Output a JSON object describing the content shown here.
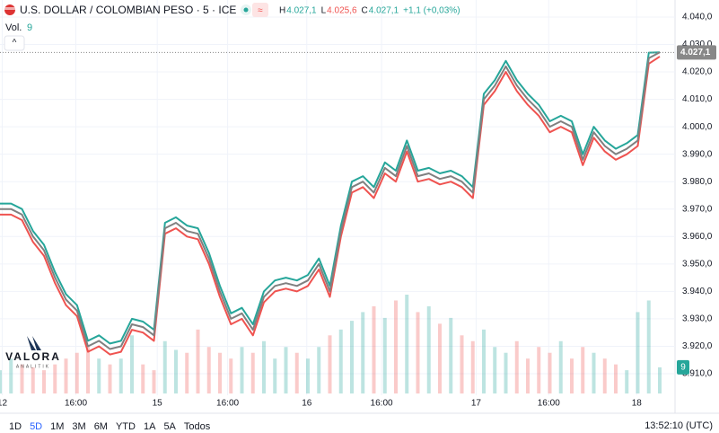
{
  "header": {
    "title": "U.S. DOLLAR / COLOMBIAN PESO · 5 · ICE",
    "ohlc": [
      {
        "key": "H",
        "text": "4.027,1"
      },
      {
        "key": "L",
        "text": "4.025,6"
      },
      {
        "key": "C",
        "text": "4.027,1"
      }
    ],
    "change": "+1,1 (+0,03%)",
    "volume_title": "Vol.",
    "volume_text": "9"
  },
  "logo": {
    "name": "VALORA",
    "tagline": "ANALITIK"
  },
  "toolbar": {
    "ranges": [
      "1D",
      "5D",
      "1M",
      "3M",
      "6M",
      "YTD",
      "1A",
      "5A",
      "Todos"
    ],
    "clock": "13:52:10 (UTC)"
  },
  "chart_data": {
    "type": "line",
    "x": [
      0,
      1,
      2,
      3,
      4,
      5,
      6,
      7,
      8,
      9,
      10,
      11,
      12,
      13,
      14,
      15,
      16,
      17,
      18,
      19,
      20,
      21,
      22,
      23,
      24,
      25,
      26,
      27,
      28,
      29,
      30,
      31,
      32,
      33,
      34,
      35,
      36,
      37,
      38,
      39,
      40,
      41,
      42,
      43,
      44,
      45,
      46,
      47,
      48,
      49,
      50,
      51,
      52,
      53,
      54,
      55,
      56,
      57,
      58,
      59,
      60
    ],
    "series": [
      {
        "color": "#26a69a",
        "values": [
          3972,
          3972,
          3970,
          3962,
          3957,
          3947,
          3939,
          3935,
          3922,
          3924,
          3921,
          3922,
          3930,
          3929,
          3926,
          3965,
          3967,
          3964,
          3963,
          3954,
          3942,
          3932,
          3934,
          3928,
          3940,
          3944,
          3945,
          3944,
          3946,
          3952,
          3942,
          3964,
          3980,
          3982,
          3978,
          3987,
          3984,
          3995,
          3984,
          3985,
          3983,
          3984,
          3982,
          3978,
          4012,
          4017,
          4024,
          4017,
          4012,
          4008,
          4002,
          4004,
          4002,
          3990,
          4000,
          3995,
          3992,
          3994,
          3997,
          4027,
          4027.1
        ]
      },
      {
        "color": "#ef5350",
        "values": [
          3968,
          3968,
          3966,
          3958,
          3953,
          3943,
          3935,
          3931,
          3918,
          3920,
          3917,
          3918,
          3926,
          3925,
          3922,
          3961,
          3963,
          3960,
          3959,
          3950,
          3938,
          3928,
          3930,
          3924,
          3936,
          3940,
          3941,
          3940,
          3942,
          3948,
          3938,
          3960,
          3976,
          3978,
          3974,
          3983,
          3980,
          3991,
          3980,
          3981,
          3979,
          3980,
          3978,
          3974,
          4008,
          4013,
          4020,
          4013,
          4008,
          4004,
          3998,
          4000,
          3998,
          3986,
          3996,
          3991,
          3988,
          3990,
          3993,
          4023,
          4025.6
        ]
      },
      {
        "color": "#808080",
        "values": [
          3970,
          3970,
          3968,
          3960,
          3955,
          3945,
          3937,
          3933,
          3920,
          3922,
          3919,
          3920,
          3928,
          3927,
          3924,
          3963,
          3965,
          3962,
          3961,
          3952,
          3940,
          3930,
          3932,
          3926,
          3938,
          3942,
          3943,
          3942,
          3944,
          3950,
          3940,
          3962,
          3978,
          3980,
          3976,
          3985,
          3982,
          3993,
          3982,
          3983,
          3981,
          3982,
          3980,
          3976,
          4010,
          4015,
          4022,
          4015,
          4010,
          4006,
          4000,
          4002,
          4000,
          3988,
          3998,
          3993,
          3990,
          3992,
          3995,
          4025,
          4027.1
        ]
      }
    ],
    "volume": [
      8,
      12,
      10,
      9,
      8,
      10,
      12,
      14,
      16,
      12,
      10,
      12,
      20,
      10,
      8,
      18,
      15,
      14,
      22,
      16,
      14,
      12,
      16,
      14,
      18,
      12,
      16,
      14,
      12,
      16,
      20,
      22,
      25,
      28,
      30,
      26,
      32,
      34,
      28,
      30,
      24,
      26,
      20,
      18,
      22,
      16,
      14,
      18,
      12,
      16,
      14,
      18,
      12,
      16,
      14,
      12,
      10,
      8,
      28,
      32,
      9
    ],
    "last_price": {
      "value": 4027.1,
      "label": "4.027,1"
    },
    "ylim": [
      3895.6,
      4046.2
    ],
    "yticks": [
      {
        "value": 4040,
        "label": "4.040,0"
      },
      {
        "value": 4030,
        "label": "4.030,0"
      },
      {
        "value": 4020,
        "label": "4.020,0"
      },
      {
        "value": 4010,
        "label": "4.010,0"
      },
      {
        "value": 4000,
        "label": "4.000,0"
      },
      {
        "value": 3990,
        "label": "3.990,0"
      },
      {
        "value": 3980,
        "label": "3.980,0"
      },
      {
        "value": 3970,
        "label": "3.970,0"
      },
      {
        "value": 3960,
        "label": "3.960,0"
      },
      {
        "value": 3950,
        "label": "3.950,0"
      },
      {
        "value": 3940,
        "label": "3.940,0"
      },
      {
        "value": 3930,
        "label": "3.930,0"
      },
      {
        "value": 3920,
        "label": "3.920,0"
      },
      {
        "value": 3910,
        "label": "3.910,0"
      }
    ],
    "xlim": [
      0,
      60
    ],
    "xticks": [
      {
        "value": 0.2,
        "label": "12"
      },
      {
        "value": 6.9,
        "label": "16:00"
      },
      {
        "value": 14.3,
        "label": "15"
      },
      {
        "value": 20.7,
        "label": "16:00"
      },
      {
        "value": 27.9,
        "label": "16"
      },
      {
        "value": 34.7,
        "label": "16:00"
      },
      {
        "value": 43.3,
        "label": "17"
      },
      {
        "value": 49.9,
        "label": "16:00"
      },
      {
        "value": 57.9,
        "label": "18"
      }
    ],
    "grid": true
  }
}
